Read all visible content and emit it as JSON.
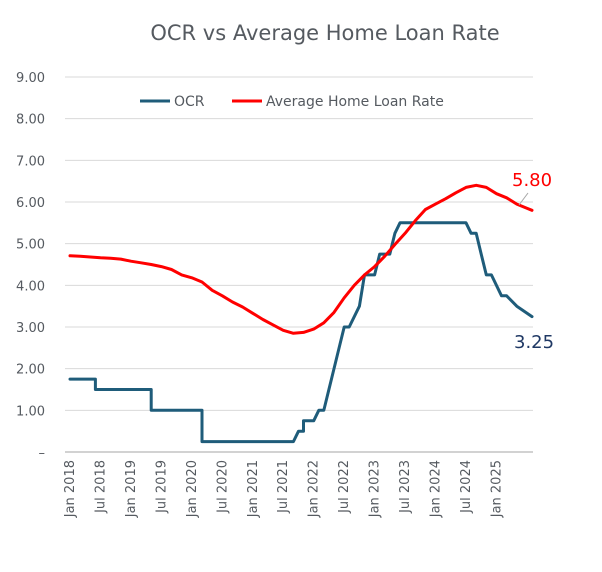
{
  "chart_data": {
    "type": "line",
    "title": "OCR vs Average Home Loan Rate",
    "xlabel": "",
    "ylabel": "",
    "ylim": [
      0,
      9
    ],
    "y_ticks": [
      "–",
      "1.00",
      "2.00",
      "3.00",
      "4.00",
      "5.00",
      "6.00",
      "7.00",
      "8.00",
      "9.00"
    ],
    "x_range_months": [
      "2018-01",
      "2025-08"
    ],
    "x_tick_labels": [
      "Jan 2018",
      "Jul 2018",
      "Jan 2019",
      "Jul 2019",
      "Jan 2020",
      "Jul 2020",
      "Jan 2021",
      "Jul 2021",
      "Jan 2022",
      "Jul 2022",
      "Jan 2023",
      "Jul 2023",
      "Jan 2024",
      "Jul 2024",
      "Jan 2025"
    ],
    "grid": true,
    "legend_position": "top",
    "series": [
      {
        "name": "OCR",
        "color": "#1f5c7a",
        "step": true,
        "end_label": "3.25",
        "end_label_color": "#1f3864",
        "points": [
          [
            "2018-01",
            1.75
          ],
          [
            "2018-06",
            1.75
          ],
          [
            "2018-06",
            1.5
          ],
          [
            "2019-04",
            1.5
          ],
          [
            "2019-05",
            1.5
          ],
          [
            "2019-05",
            1.0
          ],
          [
            "2020-03",
            1.0
          ],
          [
            "2020-03",
            0.25
          ],
          [
            "2021-09",
            0.25
          ],
          [
            "2021-10",
            0.5
          ],
          [
            "2021-11",
            0.5
          ],
          [
            "2021-11",
            0.75
          ],
          [
            "2022-01",
            0.75
          ],
          [
            "2022-02",
            1.0
          ],
          [
            "2022-03",
            1.0
          ],
          [
            "2022-04",
            1.5
          ],
          [
            "2022-05",
            2.0
          ],
          [
            "2022-06",
            2.5
          ],
          [
            "2022-07",
            3.0
          ],
          [
            "2022-08",
            3.0
          ],
          [
            "2022-10",
            3.5
          ],
          [
            "2022-11",
            4.25
          ],
          [
            "2023-01",
            4.25
          ],
          [
            "2023-02",
            4.75
          ],
          [
            "2023-04",
            4.75
          ],
          [
            "2023-05",
            5.25
          ],
          [
            "2023-06",
            5.5
          ],
          [
            "2024-07",
            5.5
          ],
          [
            "2024-08",
            5.25
          ],
          [
            "2024-09",
            5.25
          ],
          [
            "2024-10",
            4.75
          ],
          [
            "2024-11",
            4.25
          ],
          [
            "2024-12",
            4.25
          ],
          [
            "2025-02",
            3.75
          ],
          [
            "2025-03",
            3.75
          ],
          [
            "2025-05",
            3.5
          ],
          [
            "2025-08",
            3.25
          ]
        ]
      },
      {
        "name": "Average Home Loan Rate",
        "color": "#ff0000",
        "step": false,
        "end_label": "5.80",
        "end_label_color": "#ff0000",
        "points": [
          [
            "2018-01",
            4.71
          ],
          [
            "2018-03",
            4.7
          ],
          [
            "2018-05",
            4.68
          ],
          [
            "2018-07",
            4.66
          ],
          [
            "2018-09",
            4.65
          ],
          [
            "2018-11",
            4.63
          ],
          [
            "2019-01",
            4.58
          ],
          [
            "2019-03",
            4.54
          ],
          [
            "2019-05",
            4.5
          ],
          [
            "2019-07",
            4.45
          ],
          [
            "2019-09",
            4.38
          ],
          [
            "2019-11",
            4.25
          ],
          [
            "2020-01",
            4.18
          ],
          [
            "2020-03",
            4.08
          ],
          [
            "2020-05",
            3.88
          ],
          [
            "2020-07",
            3.75
          ],
          [
            "2020-09",
            3.6
          ],
          [
            "2020-11",
            3.48
          ],
          [
            "2021-01",
            3.33
          ],
          [
            "2021-03",
            3.18
          ],
          [
            "2021-05",
            3.05
          ],
          [
            "2021-07",
            2.92
          ],
          [
            "2021-09",
            2.85
          ],
          [
            "2021-11",
            2.87
          ],
          [
            "2022-01",
            2.95
          ],
          [
            "2022-03",
            3.1
          ],
          [
            "2022-05",
            3.35
          ],
          [
            "2022-07",
            3.7
          ],
          [
            "2022-09",
            4.0
          ],
          [
            "2022-11",
            4.25
          ],
          [
            "2023-01",
            4.45
          ],
          [
            "2023-03",
            4.7
          ],
          [
            "2023-05",
            4.98
          ],
          [
            "2023-07",
            5.25
          ],
          [
            "2023-09",
            5.55
          ],
          [
            "2023-11",
            5.82
          ],
          [
            "2024-01",
            5.95
          ],
          [
            "2024-03",
            6.08
          ],
          [
            "2024-05",
            6.22
          ],
          [
            "2024-07",
            6.35
          ],
          [
            "2024-09",
            6.4
          ],
          [
            "2024-11",
            6.35
          ],
          [
            "2025-01",
            6.2
          ],
          [
            "2025-03",
            6.1
          ],
          [
            "2025-05",
            5.95
          ],
          [
            "2025-07",
            5.85
          ],
          [
            "2025-08",
            5.8
          ]
        ]
      }
    ]
  }
}
